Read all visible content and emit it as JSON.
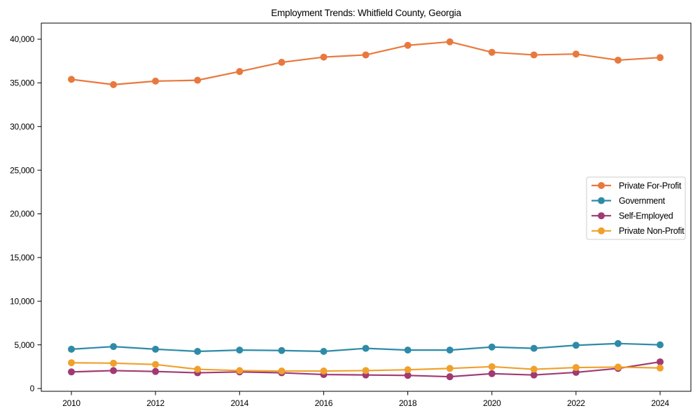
{
  "chart_data": {
    "type": "line",
    "title": "Employment Trends: Whitfield County, Georgia",
    "x": [
      2010,
      2011,
      2012,
      2013,
      2014,
      2015,
      2016,
      2017,
      2018,
      2019,
      2020,
      2021,
      2022,
      2023,
      2024
    ],
    "series": [
      {
        "name": "Private For-Profit",
        "color": "#e8793e",
        "values": [
          35400,
          34800,
          35200,
          35300,
          36300,
          37350,
          37950,
          38200,
          39300,
          39700,
          38500,
          38200,
          38300,
          37600,
          37900
        ]
      },
      {
        "name": "Government",
        "color": "#2e8ba8",
        "values": [
          4500,
          4800,
          4500,
          4250,
          4400,
          4350,
          4250,
          4600,
          4400,
          4400,
          4750,
          4600,
          4950,
          5150,
          5000
        ]
      },
      {
        "name": "Self-Employed",
        "color": "#a03a73",
        "values": [
          1900,
          2050,
          1950,
          1800,
          1900,
          1800,
          1600,
          1550,
          1500,
          1350,
          1700,
          1550,
          1850,
          2300,
          3050
        ]
      },
      {
        "name": "Private Non-Profit",
        "color": "#f0a02c",
        "values": [
          2950,
          2900,
          2750,
          2200,
          2050,
          2000,
          2000,
          2050,
          2150,
          2300,
          2500,
          2200,
          2400,
          2450,
          2350
        ]
      }
    ],
    "xticks": [
      2010,
      2012,
      2014,
      2016,
      2018,
      2020,
      2022,
      2024
    ],
    "xtick_labels": [
      "2010",
      "2012",
      "2014",
      "2016",
      "2018",
      "2020",
      "2022",
      "2024"
    ],
    "yticks": [
      0,
      5000,
      10000,
      15000,
      20000,
      25000,
      30000,
      35000,
      40000
    ],
    "ytick_labels": [
      "0",
      "5,000",
      "10,000",
      "15,000",
      "20,000",
      "25,000",
      "30,000",
      "35,000",
      "40,000"
    ],
    "xlabel": "",
    "ylabel": "",
    "xlim": [
      2009.3,
      2024.7
    ],
    "ylim": [
      -350,
      41850
    ],
    "grid": false,
    "legend_position": "center right",
    "axis_color": "#000000",
    "text_color": "#000000",
    "legend_border_color": "#cccccc",
    "legend_background": "#ffffff"
  }
}
